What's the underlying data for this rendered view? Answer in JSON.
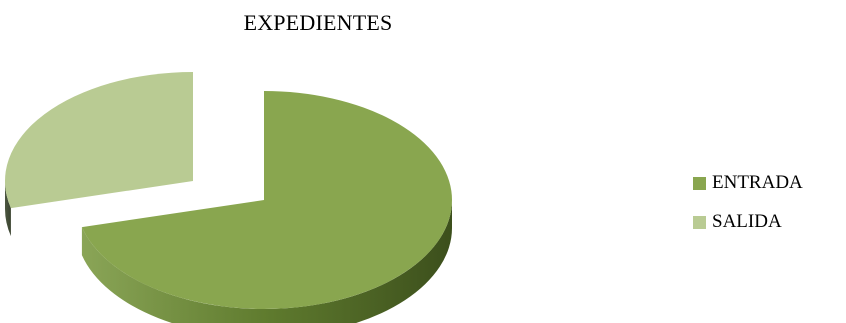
{
  "chart_data": {
    "type": "pie",
    "style": "3d-exploded",
    "title": "EXPEDIENTES",
    "categories": [
      "ENTRADA",
      "SALIDA"
    ],
    "values": [
      71,
      29
    ],
    "colors": [
      "#89a64f",
      "#b9cb93"
    ],
    "legend": "right"
  }
}
